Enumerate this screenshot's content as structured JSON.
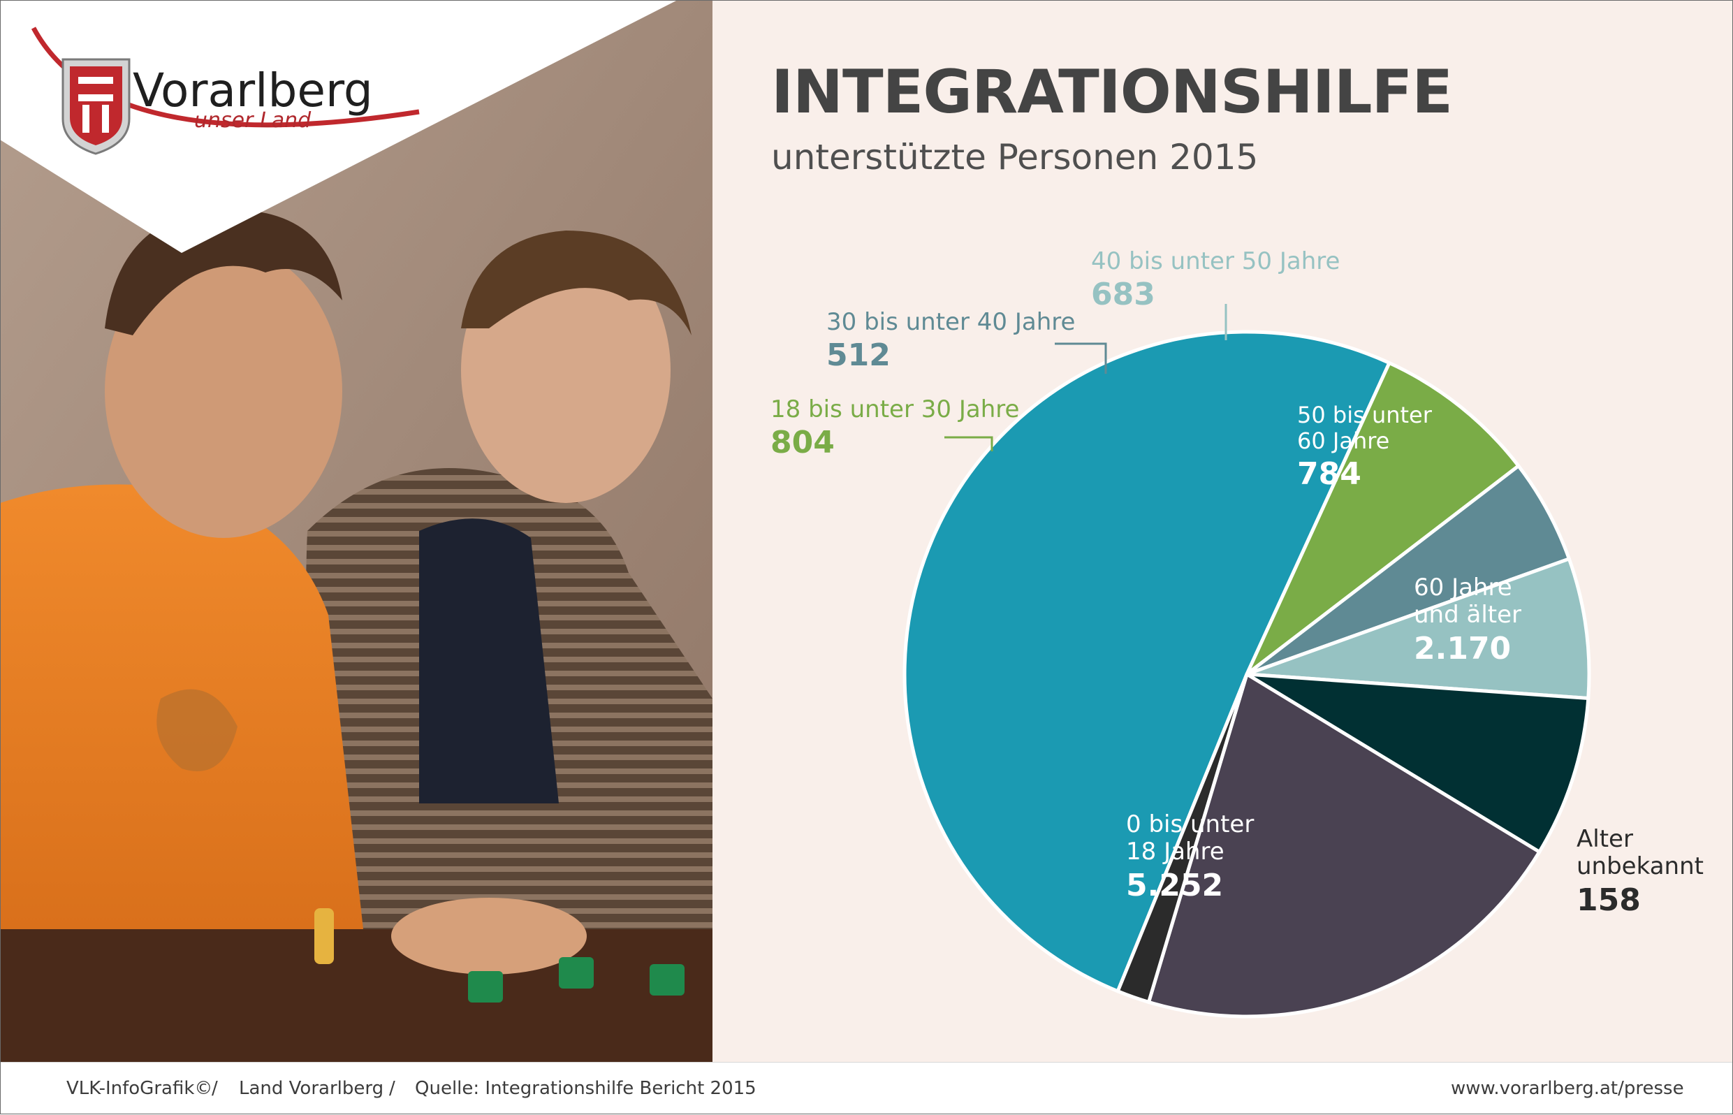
{
  "brand": {
    "name": "Vorarlberg",
    "tagline": "unser Land",
    "red": "#c0282d"
  },
  "chart_data": {
    "type": "pie",
    "title": "INTEGRATIONSHILFE",
    "subtitle": "unterstützte Personen 2015",
    "slices": [
      {
        "label": "0 bis unter\n18 Jahre",
        "value": 5252,
        "value_text": "5.252",
        "color": "#1b9ab2"
      },
      {
        "label": "18 bis unter 30 Jahre",
        "value": 804,
        "value_text": "804",
        "color": "#7aac47"
      },
      {
        "label": "30 bis unter 40 Jahre",
        "value": 512,
        "value_text": "512",
        "color": "#5f8a94"
      },
      {
        "label": "40 bis unter 50 Jahre",
        "value": 683,
        "value_text": "683",
        "color": "#96c2c2"
      },
      {
        "label": "50 bis unter\n60 Jahre",
        "value": 784,
        "value_text": "784",
        "color": "#013033"
      },
      {
        "label": "60 Jahre\nund älter",
        "value": 2170,
        "value_text": "2.170",
        "color": "#4a4252"
      },
      {
        "label": "Alter\nunbekannt",
        "value": 158,
        "value_text": "158",
        "color": "#2b2b2b"
      }
    ]
  },
  "footer": {
    "credit": "VLK-InfoGrafik©",
    "org": "Land Vorarlberg",
    "source": "Quelle: Integrationshilfe Bericht 2015",
    "url": "www.vorarlberg.at/presse",
    "separator": "/"
  }
}
